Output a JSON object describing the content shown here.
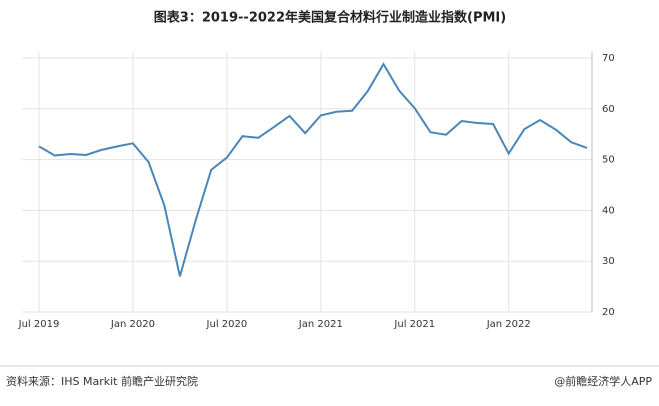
{
  "chart_data": {
    "type": "line",
    "title": "图表3：2019--2022年美国复合材料行业制造业指数(PMI)",
    "source": "资料来源：IHS Markit 前瞻产业研究院",
    "credit": "@前瞻经济学人APP",
    "categories": [
      "Jul 2019",
      null,
      null,
      null,
      null,
      null,
      "Jan 2020",
      null,
      null,
      null,
      null,
      null,
      "Jul 2020",
      null,
      null,
      null,
      null,
      null,
      "Jan 2021",
      null,
      null,
      null,
      null,
      null,
      "Jul 2021",
      null,
      null,
      null,
      null,
      null,
      "Jan 2022",
      null,
      null,
      null,
      null,
      null
    ],
    "series": [
      {
        "name": "PMI",
        "color": "#4a86b8",
        "values": [
          52.6,
          50.8,
          51.1,
          50.9,
          51.9,
          52.6,
          53.2,
          49.5,
          41.0,
          27.0,
          38.0,
          48.0,
          50.4,
          54.6,
          54.3,
          56.4,
          58.6,
          55.2,
          58.7,
          59.4,
          59.6,
          63.5,
          68.8,
          63.6,
          60.1,
          55.4,
          54.9,
          57.6,
          57.2,
          57.0,
          51.2,
          56.0,
          57.8,
          55.9,
          53.4,
          52.3
        ]
      }
    ],
    "ylim": [
      20,
      70
    ],
    "yticks": [
      20,
      30,
      40,
      50,
      60,
      70
    ],
    "grid": true
  }
}
